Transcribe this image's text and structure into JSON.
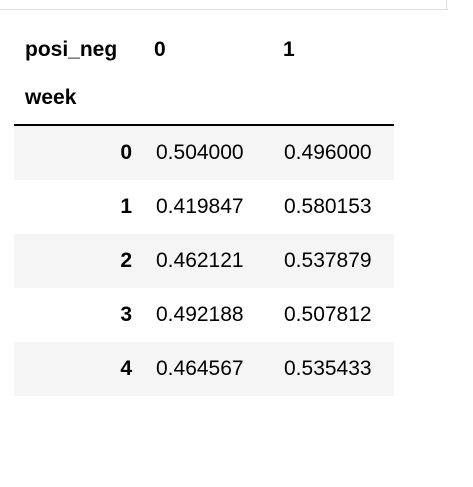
{
  "table": {
    "columns_name": "posi_neg",
    "columns": [
      "0",
      "1"
    ],
    "index_name": "week",
    "rows": [
      {
        "index": "0",
        "values": [
          "0.504000",
          "0.496000"
        ]
      },
      {
        "index": "1",
        "values": [
          "0.419847",
          "0.580153"
        ]
      },
      {
        "index": "2",
        "values": [
          "0.462121",
          "0.537879"
        ]
      },
      {
        "index": "3",
        "values": [
          "0.492188",
          "0.507812"
        ]
      },
      {
        "index": "4",
        "values": [
          "0.464567",
          "0.535433"
        ]
      }
    ]
  },
  "colors": {
    "stripe": "#f5f5f5",
    "header_rule": "#000000",
    "top_rule": "#dcdcdc"
  }
}
